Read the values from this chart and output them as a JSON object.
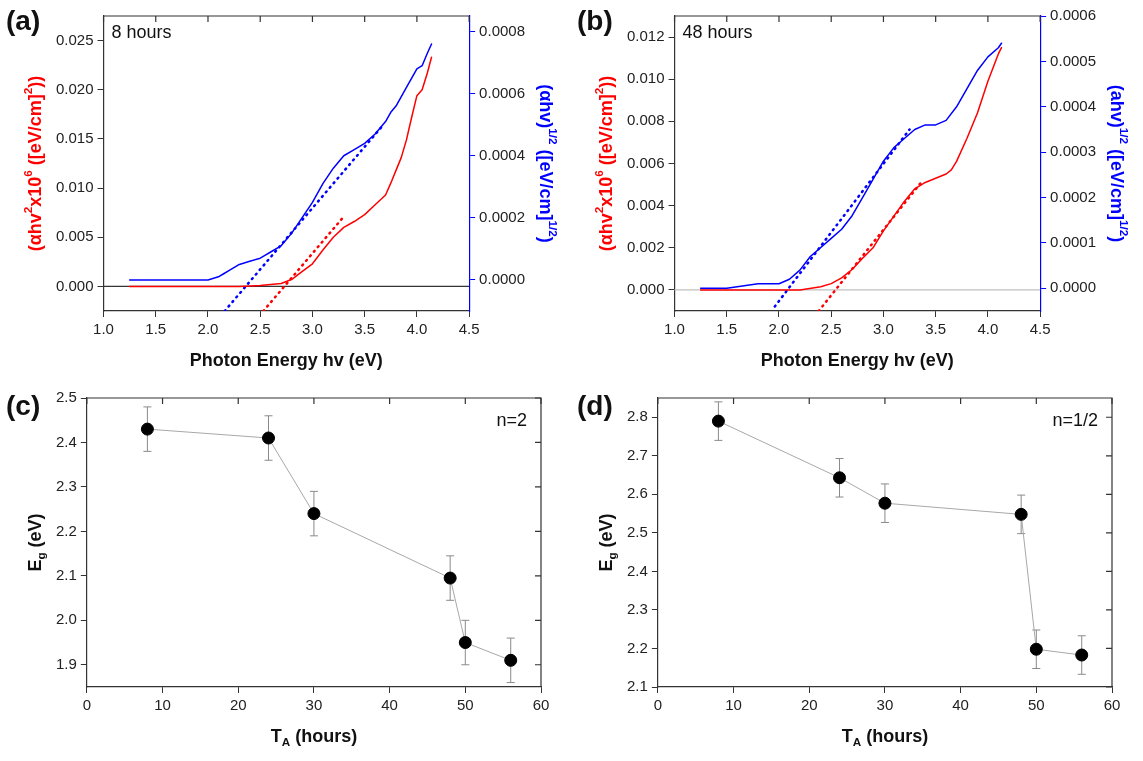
{
  "chart_data": [
    {
      "type": "line",
      "annotations": [
        "(a)",
        "8 hours"
      ],
      "xlabel": "Photon Energy hv (eV)",
      "ylabel": "(αhv$^{2}$x10$^{6}$ ([eV/cm]$^{2}$))",
      "y2label": "(αhv)$^{1/2}$ ([eV/cm]$^{1/2}$)",
      "marker": "none",
      "xlim": [
        1,
        4.5
      ],
      "xticks": [
        {
          "value": 1,
          "label": "1.0"
        },
        {
          "value": 1.5,
          "label": "1.5"
        },
        {
          "value": 2,
          "label": "2.0"
        },
        {
          "value": 2.5,
          "label": "2.5"
        },
        {
          "value": 3,
          "label": "3.0"
        },
        {
          "value": 3.5,
          "label": "3.5"
        },
        {
          "value": 4,
          "label": "4.0"
        },
        {
          "value": 4.5,
          "label": "4.5"
        }
      ],
      "ylim": [
        -0.0025,
        0.0275
      ],
      "yticks": [
        {
          "value": 0,
          "label": "0.000"
        },
        {
          "value": 0.005,
          "label": "0.005"
        },
        {
          "value": 0.01,
          "label": "0.010"
        },
        {
          "value": 0.015,
          "label": "0.015"
        },
        {
          "value": 0.02,
          "label": "0.020"
        },
        {
          "value": 0.025,
          "label": "0.025"
        }
      ],
      "y2lim": [
        -0.0001,
        0.00085
      ],
      "y2ticks": [
        {
          "value": 0,
          "label": "0.0000"
        },
        {
          "value": 0.0002,
          "label": "0.0002"
        },
        {
          "value": 0.0004,
          "label": "0.0004"
        },
        {
          "value": 0.0006,
          "label": "0.0006"
        },
        {
          "value": 0.0008,
          "label": "0.0008"
        }
      ],
      "ref_lines": [
        {
          "axis": "y",
          "value": 0,
          "color": "#333333"
        }
      ],
      "series": [
        {
          "color": "#ff0000",
          "x": [
            1.25,
            1.5,
            2.0,
            2.3,
            2.5,
            2.7,
            2.8,
            2.9,
            3.0,
            3.1,
            3.2,
            3.3,
            3.4,
            3.5,
            3.6,
            3.7,
            3.75,
            3.8,
            3.85,
            3.9,
            3.95,
            4.0,
            4.05,
            4.1,
            4.14
          ],
          "values": [
            0,
            0,
            0,
            0,
            0.0001,
            0.0003,
            0.0007,
            0.0015,
            0.0023,
            0.0037,
            0.005,
            0.006,
            0.0066,
            0.0073,
            0.0083,
            0.0093,
            0.0105,
            0.0118,
            0.0131,
            0.0149,
            0.0172,
            0.0194,
            0.02,
            0.0217,
            0.0233
          ]
        },
        {
          "color": "#0000ff",
          "axis": "y2",
          "x": [
            1.25,
            1.5,
            2.0,
            2.1,
            2.15,
            2.2,
            2.3,
            2.4,
            2.5,
            2.6,
            2.7,
            2.8,
            2.9,
            3.0,
            3.1,
            3.2,
            3.3,
            3.4,
            3.5,
            3.6,
            3.7,
            3.75,
            3.8,
            3.9,
            3.95,
            4.0,
            4.05,
            4.1,
            4.14
          ],
          "values": [
            0,
            0,
            0,
            1e-05,
            2e-05,
            3e-05,
            5e-05,
            6e-05,
            7e-05,
            9e-05,
            0.00011,
            0.00015,
            0.0002,
            0.00025,
            0.00031,
            0.00036,
            0.0004,
            0.00042,
            0.00044,
            0.00047,
            0.00051,
            0.00054,
            0.00056,
            0.00062,
            0.00065,
            0.00068,
            0.00069,
            0.00073,
            0.00076
          ]
        },
        {
          "color": "#ff0000",
          "line_style": "dotted",
          "x": [
            2.53,
            3.3
          ],
          "values": [
            -0.0025,
            0.0071
          ]
        },
        {
          "color": "#0000ff",
          "line_style": "dotted",
          "axis": "y2",
          "x": [
            2.16,
            3.68
          ],
          "values": [
            -0.0001,
            0.0005
          ]
        }
      ]
    },
    {
      "type": "line",
      "annotations": [
        "(b)",
        "48 hours"
      ],
      "xlabel": "Photon Energy hv (eV)",
      "ylabel": "(αhv$^{2}$x10$^{6}$ ([eV/cm]$^{2}$))",
      "y2label": "(ahv)$^{1/2}$ ([eV/cm]$^{1/2}$)",
      "marker": "none",
      "xlim": [
        1,
        4.5
      ],
      "xticks": [
        {
          "value": 1,
          "label": "1.0"
        },
        {
          "value": 1.5,
          "label": "1.5"
        },
        {
          "value": 2,
          "label": "2.0"
        },
        {
          "value": 2.5,
          "label": "2.5"
        },
        {
          "value": 3,
          "label": "3.0"
        },
        {
          "value": 3.5,
          "label": "3.5"
        },
        {
          "value": 4,
          "label": "4.0"
        },
        {
          "value": 4.5,
          "label": "4.5"
        }
      ],
      "ylim": [
        -0.001,
        0.013
      ],
      "yticks": [
        {
          "value": 0,
          "label": "0.000"
        },
        {
          "value": 0.002,
          "label": "0.002"
        },
        {
          "value": 0.004,
          "label": "0.004"
        },
        {
          "value": 0.006,
          "label": "0.006"
        },
        {
          "value": 0.008,
          "label": "0.008"
        },
        {
          "value": 0.01,
          "label": "0.010"
        },
        {
          "value": 0.012,
          "label": "0.012"
        }
      ],
      "y2lim": [
        -5e-05,
        0.0006
      ],
      "y2ticks": [
        {
          "value": 0,
          "label": "0.0000"
        },
        {
          "value": 0.0001,
          "label": "0.0001"
        },
        {
          "value": 0.0002,
          "label": "0.0002"
        },
        {
          "value": 0.0003,
          "label": "0.0003"
        },
        {
          "value": 0.0004,
          "label": "0.0004"
        },
        {
          "value": 0.0005,
          "label": "0.0005"
        },
        {
          "value": 0.0006,
          "label": "0.0006"
        }
      ],
      "ref_lines": [
        {
          "axis": "y",
          "value": 0,
          "color": "#c0c0c0"
        }
      ],
      "series": [
        {
          "color": "#ff0000",
          "x": [
            1.25,
            1.5,
            2.0,
            2.2,
            2.4,
            2.5,
            2.6,
            2.7,
            2.8,
            2.9,
            3.0,
            3.1,
            3.2,
            3.3,
            3.4,
            3.5,
            3.6,
            3.65,
            3.7,
            3.8,
            3.9,
            4.0,
            4.1,
            4.13
          ],
          "values": [
            0,
            0,
            0,
            0,
            0.00015,
            0.0003,
            0.00057,
            0.00097,
            0.0015,
            0.002,
            0.0028,
            0.0035,
            0.0042,
            0.0048,
            0.0051,
            0.0053,
            0.0055,
            0.0057,
            0.0061,
            0.0072,
            0.0084,
            0.0099,
            0.0112,
            0.0115
          ]
        },
        {
          "color": "#0000ff",
          "axis": "y2",
          "x": [
            1.25,
            1.5,
            1.8,
            2.0,
            2.1,
            2.2,
            2.3,
            2.4,
            2.5,
            2.6,
            2.7,
            2.8,
            2.9,
            3.0,
            3.1,
            3.2,
            3.3,
            3.4,
            3.5,
            3.6,
            3.7,
            3.8,
            3.9,
            4.0,
            4.1,
            4.13
          ],
          "values": [
            0,
            0,
            1e-05,
            1e-05,
            2e-05,
            4e-05,
            7e-05,
            9e-05,
            0.00011,
            0.00013,
            0.00016,
            0.0002,
            0.00024,
            0.00028,
            0.00031,
            0.00033,
            0.00035,
            0.00036,
            0.00036,
            0.00037,
            0.0004,
            0.00044,
            0.00048,
            0.00051,
            0.00053,
            0.00054
          ]
        },
        {
          "color": "#ff0000",
          "line_style": "dotted",
          "x": [
            2.38,
            3.36
          ],
          "values": [
            -0.001,
            0.0051
          ]
        },
        {
          "color": "#0000ff",
          "line_style": "dotted",
          "axis": "y2",
          "x": [
            1.96,
            3.25
          ],
          "values": [
            -4e-05,
            0.00035
          ]
        }
      ]
    },
    {
      "type": "line",
      "annotations": [
        "(c)",
        "n=2"
      ],
      "xlabel": "T$_{A}$ (hours)",
      "ylabel": "E$_{g}$ (eV)",
      "marker": "circle",
      "xlim": [
        0,
        60
      ],
      "xticks": [
        0,
        10,
        20,
        30,
        40,
        50,
        60
      ],
      "ylim": [
        1.85,
        2.5
      ],
      "yticks": [
        1.9,
        {
          "value": 2,
          "label": "2.0"
        },
        2.1,
        2.2,
        2.3,
        2.4,
        2.5
      ],
      "x": [
        8,
        24,
        30,
        48,
        50,
        56
      ],
      "series": [
        {
          "color": "#000000",
          "values": [
            2.43,
            2.41,
            2.24,
            2.095,
            1.95,
            1.91
          ],
          "errors": [
            0.05,
            0.05,
            0.05,
            0.05,
            0.05,
            0.05
          ]
        }
      ]
    },
    {
      "type": "line",
      "annotations": [
        "(d)",
        "n=1/2"
      ],
      "xlabel": "T$_{A}$ (hours)",
      "ylabel": "E$_{g}$ (eV)",
      "marker": "circle",
      "xlim": [
        0,
        60
      ],
      "xticks": [
        0,
        10,
        20,
        30,
        40,
        50,
        60
      ],
      "ylim": [
        2.1,
        2.85
      ],
      "yticks": [
        2.1,
        2.2,
        2.3,
        2.4,
        2.5,
        2.6,
        2.7,
        2.8
      ],
      "x": [
        8,
        24,
        30,
        48,
        50,
        56
      ],
      "series": [
        {
          "color": "#000000",
          "values": [
            2.79,
            2.643,
            2.577,
            2.548,
            2.198,
            2.183
          ],
          "errors": [
            0.05,
            0.05,
            0.05,
            0.05,
            0.05,
            0.05
          ]
        }
      ]
    }
  ]
}
